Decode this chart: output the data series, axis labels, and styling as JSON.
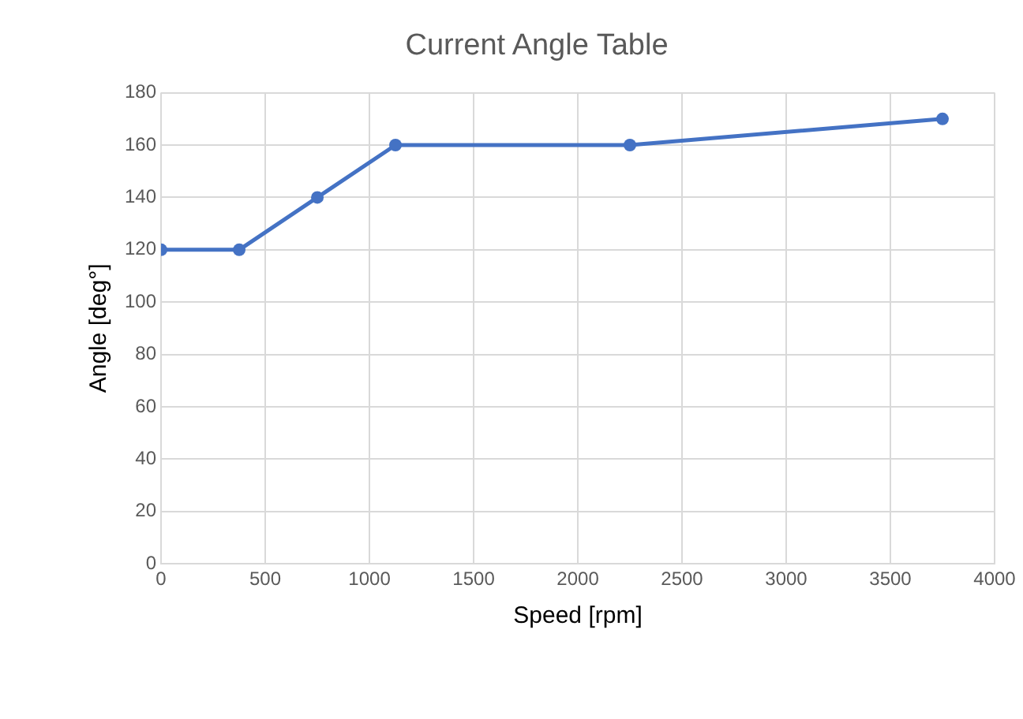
{
  "chart_data": {
    "type": "line",
    "title": "Current Angle Table",
    "xlabel": "Speed [rpm]",
    "ylabel": "Angle [deg°]",
    "x": [
      0,
      375,
      750,
      1125,
      2250,
      3750
    ],
    "series": [
      {
        "color": "#4472c4",
        "values": [
          120,
          120,
          140,
          160,
          160,
          170
        ]
      }
    ],
    "xlim": [
      0,
      4000
    ],
    "xticks": [
      0,
      500,
      1000,
      1500,
      2000,
      2500,
      3000,
      3500,
      4000
    ],
    "ylim": [
      0,
      180
    ],
    "yticks": [
      0,
      20,
      40,
      60,
      80,
      100,
      120,
      140,
      160,
      180
    ],
    "grid": true,
    "legend": false,
    "marker": "circle",
    "line_style": "solid"
  }
}
